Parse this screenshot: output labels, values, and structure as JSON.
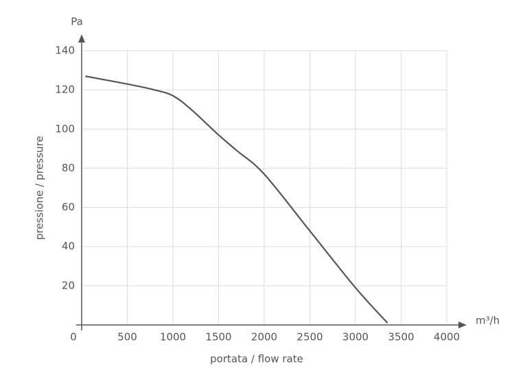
{
  "chart_data": {
    "type": "line",
    "y_unit": "Pa",
    "x_unit": "m³/h",
    "y_label": "pressione / pressure",
    "x_label": "portata / flow rate",
    "x": [
      40,
      500,
      800,
      1000,
      1200,
      1500,
      1700,
      2000,
      2500,
      3000,
      3350
    ],
    "series": [
      {
        "color": "#555555",
        "values": [
          127,
          123,
          120,
          117,
          110,
          97,
          89,
          77,
          48,
          19,
          1
        ]
      }
    ],
    "xlim": [
      0,
      4000
    ],
    "xticks": [
      0,
      500,
      1000,
      1500,
      2000,
      2500,
      3000,
      3500,
      4000
    ],
    "ylim": [
      0,
      140
    ],
    "yticks": [
      20,
      40,
      60,
      80,
      100,
      120,
      140
    ],
    "grid": true
  }
}
